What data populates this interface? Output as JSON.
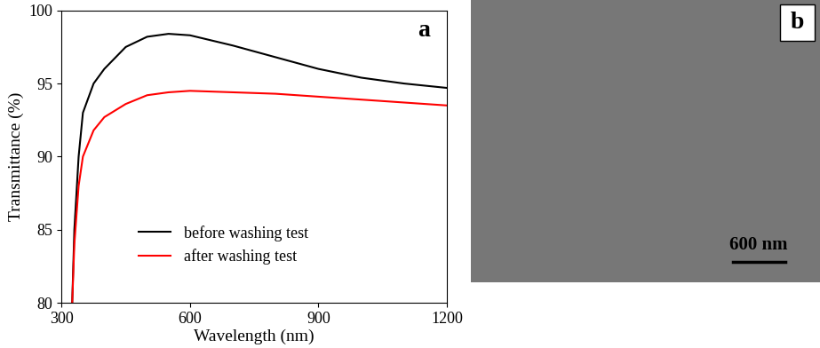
{
  "chart_data": {
    "type": "line",
    "panel_label": "a",
    "x_label": "Wavelength (nm)",
    "y_label": "Transmittance (%)",
    "x": [
      325,
      330,
      340,
      350,
      375,
      400,
      450,
      500,
      550,
      600,
      700,
      800,
      900,
      1000,
      1100,
      1200
    ],
    "series": [
      {
        "name": "before washing test",
        "color": "#000000",
        "values": [
          80,
          85,
          90,
          93,
          95,
          96,
          97.5,
          98.2,
          98.4,
          98.3,
          97.6,
          96.8,
          96.0,
          95.4,
          95.0,
          94.7
        ]
      },
      {
        "name": "after washing test",
        "color": "#ff0000",
        "values": [
          80,
          84,
          88,
          90,
          91.8,
          92.7,
          93.6,
          94.2,
          94.4,
          94.5,
          94.4,
          94.3,
          94.1,
          93.9,
          93.7,
          93.5
        ]
      }
    ],
    "xlim": [
      300,
      1200
    ],
    "xticks": [
      300,
      600,
      900,
      1200
    ],
    "ylim": [
      80,
      100
    ],
    "yticks": [
      80,
      85,
      90,
      95,
      100
    ],
    "legend": "lower center"
  },
  "image": {
    "panel_label": "b",
    "scale_bar": "600 nm"
  }
}
